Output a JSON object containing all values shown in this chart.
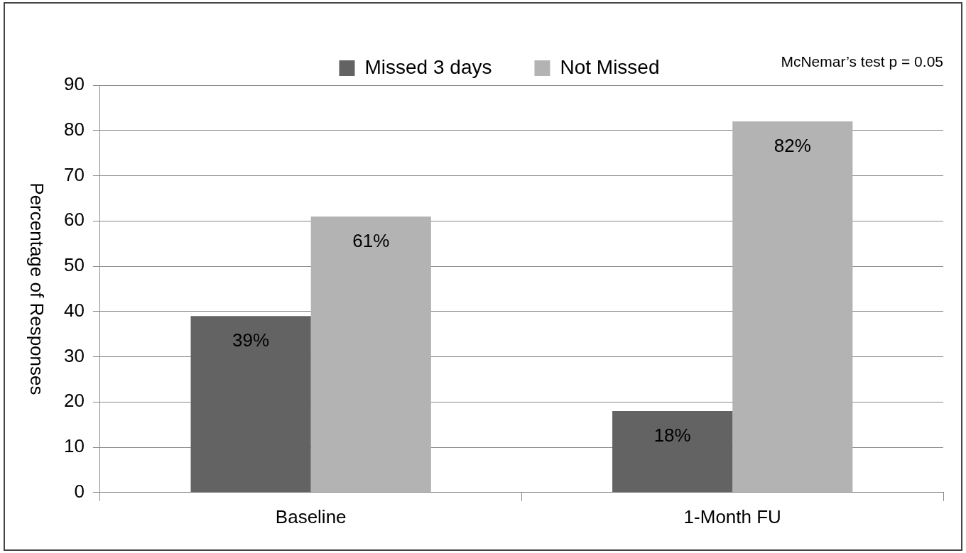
{
  "chart_data": {
    "type": "bar",
    "ylabel": "Percentage of Responses",
    "categories": [
      "Baseline",
      "1-Month FU"
    ],
    "series": [
      {
        "name": "Missed 3 days",
        "color": "#636363",
        "values": [
          39,
          18
        ],
        "value_labels": [
          "39%",
          "18%"
        ]
      },
      {
        "name": "Not Missed",
        "color": "#b3b3b3",
        "values": [
          61,
          82
        ],
        "value_labels": [
          "61%",
          "82%"
        ]
      }
    ],
    "ylim": [
      0,
      90
    ],
    "yticks": [
      0,
      10,
      20,
      30,
      40,
      50,
      60,
      70,
      80,
      90
    ],
    "grid": "y",
    "legend": "top",
    "annotations": [
      "McNemar’s test p = 0.05"
    ]
  }
}
